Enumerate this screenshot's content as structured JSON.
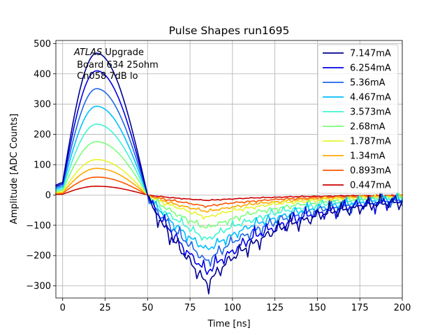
{
  "chart_data": {
    "type": "line",
    "title": "Pulse Shapes run1695",
    "xlabel": "Time [ns]",
    "ylabel": "Amplitude [ADC Counts]",
    "xlim": [
      -4,
      200
    ],
    "ylim": [
      -340,
      510
    ],
    "xticks": [
      0,
      25,
      50,
      75,
      100,
      125,
      150,
      175,
      200
    ],
    "yticks": [
      -300,
      -200,
      -100,
      0,
      100,
      200,
      300,
      400,
      500
    ],
    "xtick_labels": [
      "0",
      "25",
      "50",
      "75",
      "100",
      "125",
      "150",
      "175",
      "200"
    ],
    "ytick_labels": [
      "−300",
      "−200",
      "−100",
      "0",
      "100",
      "200",
      "300",
      "400",
      "500"
    ],
    "grid": true,
    "legend_position": "upper-right",
    "annotation": {
      "line1_italic": "ATLAS",
      "line1_rest": " Upgrade",
      "line2": " Board 634 25ohm",
      "line3": " Ch058 7dB lo"
    },
    "series": [
      {
        "name": "7.147mA",
        "peak": 468,
        "trough": -292,
        "color": "#00008f"
      },
      {
        "name": "6.254mA",
        "peak": 410,
        "trough": -256,
        "color": "#0000e6"
      },
      {
        "name": "5.36mA",
        "peak": 351,
        "trough": -219,
        "color": "#1f66e6"
      },
      {
        "name": "4.467mA",
        "peak": 293,
        "trough": -183,
        "color": "#00bfff"
      },
      {
        "name": "3.573mA",
        "peak": 234,
        "trough": -146,
        "color": "#3ff5cf"
      },
      {
        "name": "2.68mA",
        "peak": 176,
        "trough": -110,
        "color": "#7aff7a"
      },
      {
        "name": "1.787mA",
        "peak": 117,
        "trough": -73,
        "color": "#e6f52e"
      },
      {
        "name": "1.34mA",
        "peak": 88,
        "trough": -55,
        "color": "#ffaa00"
      },
      {
        "name": "0.893mA",
        "peak": 59,
        "trough": -37,
        "color": "#ff5500"
      },
      {
        "name": "0.447mA",
        "peak": 29,
        "trough": -18,
        "color": "#cc0000"
      }
    ]
  }
}
